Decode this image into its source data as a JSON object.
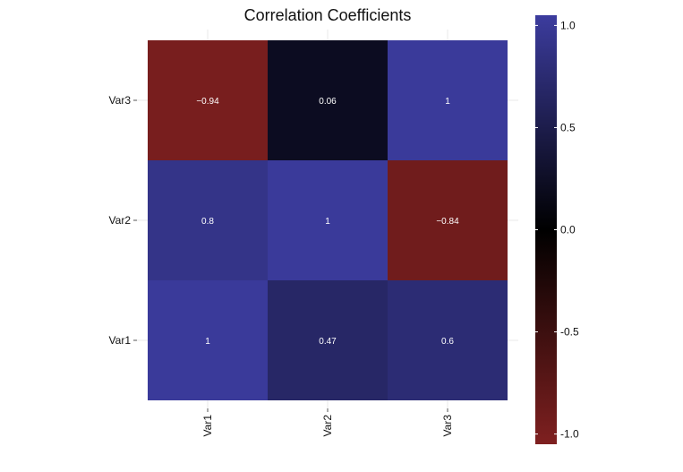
{
  "chart_data": {
    "type": "heatmap",
    "title": "Correlation Coefficients",
    "x_categories": [
      "Var1",
      "Var2",
      "Var3"
    ],
    "y_categories": [
      "Var1",
      "Var2",
      "Var3"
    ],
    "values": [
      {
        "x": "Var1",
        "y": "Var1",
        "value": 1,
        "label": "1"
      },
      {
        "x": "Var2",
        "y": "Var1",
        "value": 0.47,
        "label": "0.47"
      },
      {
        "x": "Var3",
        "y": "Var1",
        "value": 0.6,
        "label": "0.6"
      },
      {
        "x": "Var1",
        "y": "Var2",
        "value": 0.8,
        "label": "0.8"
      },
      {
        "x": "Var2",
        "y": "Var2",
        "value": 1,
        "label": "1"
      },
      {
        "x": "Var3",
        "y": "Var2",
        "value": -0.84,
        "label": "−0.84"
      },
      {
        "x": "Var1",
        "y": "Var3",
        "value": -0.94,
        "label": "−0.94"
      },
      {
        "x": "Var2",
        "y": "Var3",
        "value": 0.06,
        "label": "0.06"
      },
      {
        "x": "Var3",
        "y": "Var3",
        "value": 1,
        "label": "1"
      }
    ],
    "color_scale": {
      "low_color": "#7f2020",
      "mid_color": "#000000",
      "high_color": "#3c3c9e",
      "range": [
        -1.05,
        1.05
      ],
      "ticks": [
        1.0,
        0.5,
        0.0,
        -0.5,
        -1.0
      ],
      "tick_labels": [
        "1.0",
        "0.5",
        "0.0",
        "-0.5",
        "-1.0"
      ]
    },
    "grid": true,
    "legend_position": "right"
  }
}
